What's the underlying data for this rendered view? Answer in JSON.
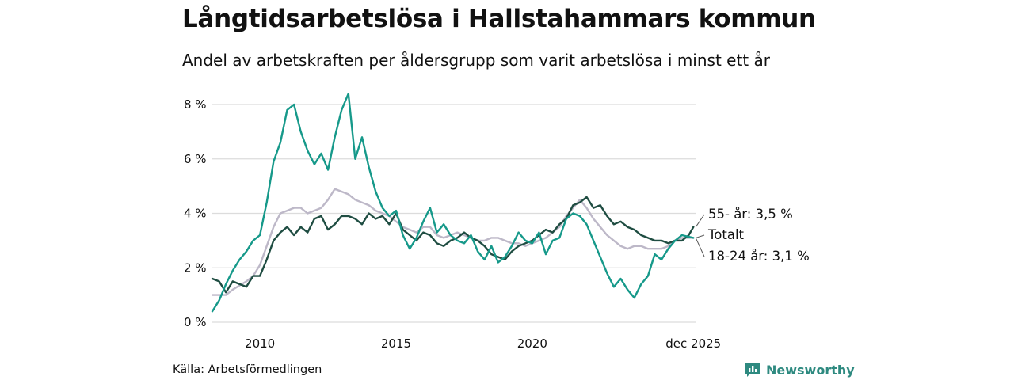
{
  "colors": {
    "total": "#bdb8c8",
    "age_55": "#1f4d42",
    "age_18_24": "#16998a",
    "grid": "#dcdcdc",
    "brand": "#2e8a80"
  },
  "footer": {
    "source": "Källa: Arbetsförmedlingen",
    "brand": "Newsworthy"
  },
  "chart_data": {
    "type": "line",
    "title": "Långtidsarbetslösa i Hallstahammars kommun",
    "subtitle": "Andel av arbetskraften per åldersgrupp som varit arbetslösa i minst ett år",
    "xlabel": "",
    "ylabel": "",
    "xlim": [
      2008.25,
      2026.0
    ],
    "ylim": [
      0,
      8
    ],
    "grid": "horizontal",
    "y_ticks": [
      {
        "value": 0,
        "label": "0 %"
      },
      {
        "value": 2,
        "label": "2 %"
      },
      {
        "value": 4,
        "label": "4 %"
      },
      {
        "value": 6,
        "label": "6 %"
      },
      {
        "value": 8,
        "label": "8 %"
      }
    ],
    "x_ticks": [
      {
        "value": 2010,
        "label": "2010"
      },
      {
        "value": 2015,
        "label": "2015"
      },
      {
        "value": 2020,
        "label": "2020"
      },
      {
        "value": 2025.92,
        "label": "dec 2025"
      }
    ],
    "series": [
      {
        "key": "total",
        "name": "Totalt",
        "end_label": "Totalt",
        "x": [
          2008.25,
          2008.75,
          2009.0,
          2009.5,
          2009.75,
          2010.0,
          2010.25,
          2010.5,
          2010.75,
          2011.0,
          2011.25,
          2011.5,
          2011.75,
          2012.0,
          2012.25,
          2012.5,
          2012.75,
          2013.0,
          2013.25,
          2013.5,
          2013.75,
          2014.0,
          2014.25,
          2014.5,
          2014.75,
          2015.0,
          2015.25,
          2015.5,
          2015.75,
          2016.0,
          2016.25,
          2016.5,
          2016.75,
          2017.0,
          2017.25,
          2017.5,
          2017.75,
          2018.0,
          2018.25,
          2018.5,
          2018.75,
          2019.0,
          2019.25,
          2019.5,
          2019.75,
          2020.0,
          2020.25,
          2020.5,
          2020.75,
          2021.0,
          2021.25,
          2021.5,
          2021.75,
          2022.0,
          2022.25,
          2022.5,
          2022.75,
          2023.0,
          2023.25,
          2023.5,
          2023.75,
          2024.0,
          2024.25,
          2024.5,
          2024.75,
          2025.0,
          2025.25,
          2025.5,
          2025.92
        ],
        "values": [
          1.0,
          1.0,
          1.2,
          1.5,
          1.7,
          2.1,
          2.8,
          3.5,
          4.0,
          4.1,
          4.2,
          4.2,
          4.0,
          4.1,
          4.2,
          4.5,
          4.9,
          4.8,
          4.7,
          4.5,
          4.4,
          4.3,
          4.1,
          4.0,
          3.9,
          3.7,
          3.5,
          3.4,
          3.3,
          3.5,
          3.5,
          3.2,
          3.1,
          3.2,
          3.3,
          3.2,
          3.1,
          3.0,
          3.0,
          3.1,
          3.1,
          3.0,
          2.9,
          2.9,
          2.8,
          2.9,
          3.0,
          3.1,
          3.3,
          3.5,
          3.9,
          4.2,
          4.5,
          4.2,
          3.8,
          3.5,
          3.2,
          3.0,
          2.8,
          2.7,
          2.8,
          2.8,
          2.7,
          2.7,
          2.7,
          2.8,
          3.0,
          3.1,
          3.1
        ]
      },
      {
        "key": "age_55",
        "name": "55- år",
        "end_label": "55- år: 3,5 %",
        "x": [
          2008.25,
          2008.5,
          2008.75,
          2009.0,
          2009.25,
          2009.5,
          2009.75,
          2010.0,
          2010.25,
          2010.5,
          2010.75,
          2011.0,
          2011.25,
          2011.5,
          2011.75,
          2012.0,
          2012.25,
          2012.5,
          2012.75,
          2013.0,
          2013.25,
          2013.5,
          2013.75,
          2014.0,
          2014.25,
          2014.5,
          2014.75,
          2015.0,
          2015.25,
          2015.5,
          2015.75,
          2016.0,
          2016.25,
          2016.5,
          2016.75,
          2017.0,
          2017.25,
          2017.5,
          2017.75,
          2018.0,
          2018.25,
          2018.5,
          2018.75,
          2019.0,
          2019.25,
          2019.5,
          2019.75,
          2020.0,
          2020.25,
          2020.5,
          2020.75,
          2021.0,
          2021.25,
          2021.5,
          2021.75,
          2022.0,
          2022.25,
          2022.5,
          2022.75,
          2023.0,
          2023.25,
          2023.5,
          2023.75,
          2024.0,
          2024.25,
          2024.5,
          2024.75,
          2025.0,
          2025.25,
          2025.5,
          2025.75,
          2025.92
        ],
        "values": [
          1.6,
          1.5,
          1.1,
          1.5,
          1.4,
          1.3,
          1.7,
          1.7,
          2.3,
          3.0,
          3.3,
          3.5,
          3.2,
          3.5,
          3.3,
          3.8,
          3.9,
          3.4,
          3.6,
          3.9,
          3.9,
          3.8,
          3.6,
          4.0,
          3.8,
          3.9,
          3.6,
          4.0,
          3.4,
          3.2,
          3.0,
          3.3,
          3.2,
          2.9,
          2.8,
          3.0,
          3.1,
          3.3,
          3.1,
          3.0,
          2.8,
          2.5,
          2.4,
          2.3,
          2.6,
          2.8,
          2.9,
          3.0,
          3.2,
          3.4,
          3.3,
          3.6,
          3.8,
          4.3,
          4.4,
          4.6,
          4.2,
          4.3,
          3.9,
          3.6,
          3.7,
          3.5,
          3.4,
          3.2,
          3.1,
          3.0,
          3.0,
          2.9,
          3.0,
          3.0,
          3.2,
          3.5
        ]
      },
      {
        "key": "age_18_24",
        "name": "18-24 år",
        "end_label": "18-24 år: 3,1 %",
        "x": [
          2008.25,
          2008.5,
          2008.75,
          2009.0,
          2009.25,
          2009.5,
          2009.75,
          2010.0,
          2010.25,
          2010.5,
          2010.75,
          2011.0,
          2011.25,
          2011.5,
          2011.75,
          2012.0,
          2012.25,
          2012.5,
          2012.75,
          2013.0,
          2013.25,
          2013.5,
          2013.75,
          2014.0,
          2014.25,
          2014.5,
          2014.75,
          2015.0,
          2015.25,
          2015.5,
          2015.75,
          2016.0,
          2016.25,
          2016.5,
          2016.75,
          2017.0,
          2017.25,
          2017.5,
          2017.75,
          2018.0,
          2018.25,
          2018.5,
          2018.75,
          2019.0,
          2019.25,
          2019.5,
          2019.75,
          2020.0,
          2020.25,
          2020.5,
          2020.75,
          2021.0,
          2021.25,
          2021.5,
          2021.75,
          2022.0,
          2022.25,
          2022.5,
          2022.75,
          2023.0,
          2023.25,
          2023.5,
          2023.75,
          2024.0,
          2024.25,
          2024.5,
          2024.75,
          2025.0,
          2025.25,
          2025.5,
          2025.92
        ],
        "values": [
          0.4,
          0.8,
          1.4,
          1.9,
          2.3,
          2.6,
          3.0,
          3.2,
          4.4,
          5.9,
          6.6,
          7.8,
          8.0,
          7.0,
          6.3,
          5.8,
          6.2,
          5.6,
          6.8,
          7.8,
          8.4,
          6.0,
          6.8,
          5.7,
          4.8,
          4.2,
          3.9,
          4.1,
          3.2,
          2.7,
          3.1,
          3.7,
          4.2,
          3.3,
          3.6,
          3.2,
          3.0,
          2.9,
          3.2,
          2.6,
          2.3,
          2.8,
          2.2,
          2.4,
          2.8,
          3.3,
          3.0,
          2.9,
          3.3,
          2.5,
          3.0,
          3.1,
          3.8,
          4.0,
          3.9,
          3.6,
          3.0,
          2.4,
          1.8,
          1.3,
          1.6,
          1.2,
          0.9,
          1.4,
          1.7,
          2.5,
          2.3,
          2.7,
          3.0,
          3.2,
          3.1
        ]
      }
    ]
  }
}
